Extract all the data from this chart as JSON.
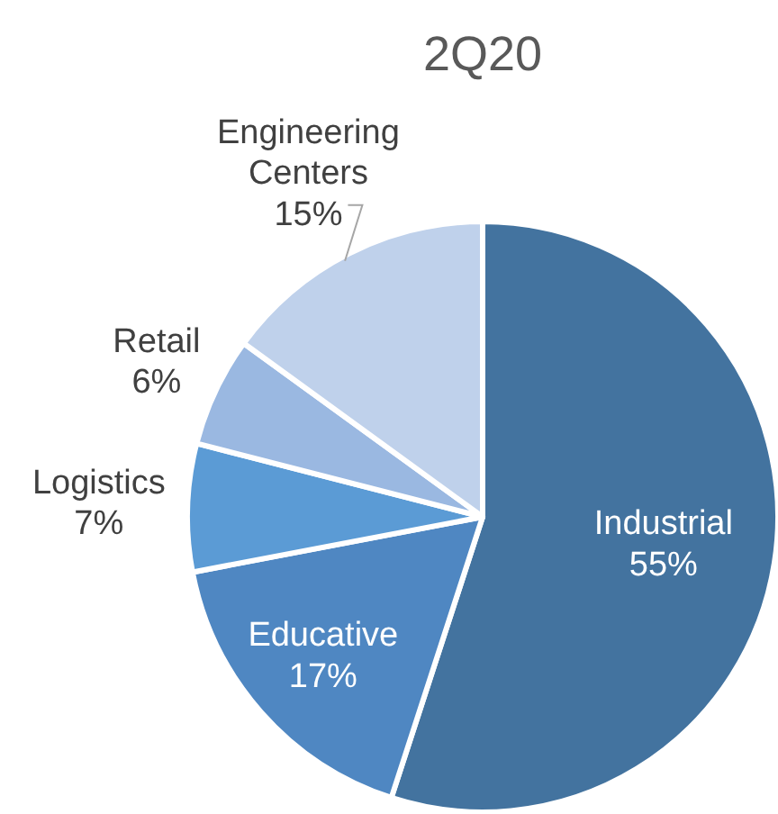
{
  "chart_data": {
    "type": "pie",
    "title": "2Q20",
    "categories": [
      "Industrial",
      "Educative",
      "Logistics",
      "Retail",
      "Engineering Centers"
    ],
    "values": [
      55,
      17,
      7,
      6,
      15
    ],
    "colors": [
      "#43739f",
      "#4f87c2",
      "#5b9bd5",
      "#9ab8e1",
      "#bfd1eb"
    ],
    "value_labels": [
      "55%",
      "17%",
      "7%",
      "6%",
      "15%"
    ]
  }
}
